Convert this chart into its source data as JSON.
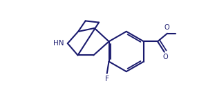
{
  "line_color": "#1a1a6e",
  "bg_color": "#ffffff",
  "line_width": 1.5,
  "figsize": [
    2.85,
    1.5
  ],
  "dpi": 100,
  "nh_label": "HN",
  "f_label": "F",
  "o_label": "O",
  "methoxy_label": "O"
}
